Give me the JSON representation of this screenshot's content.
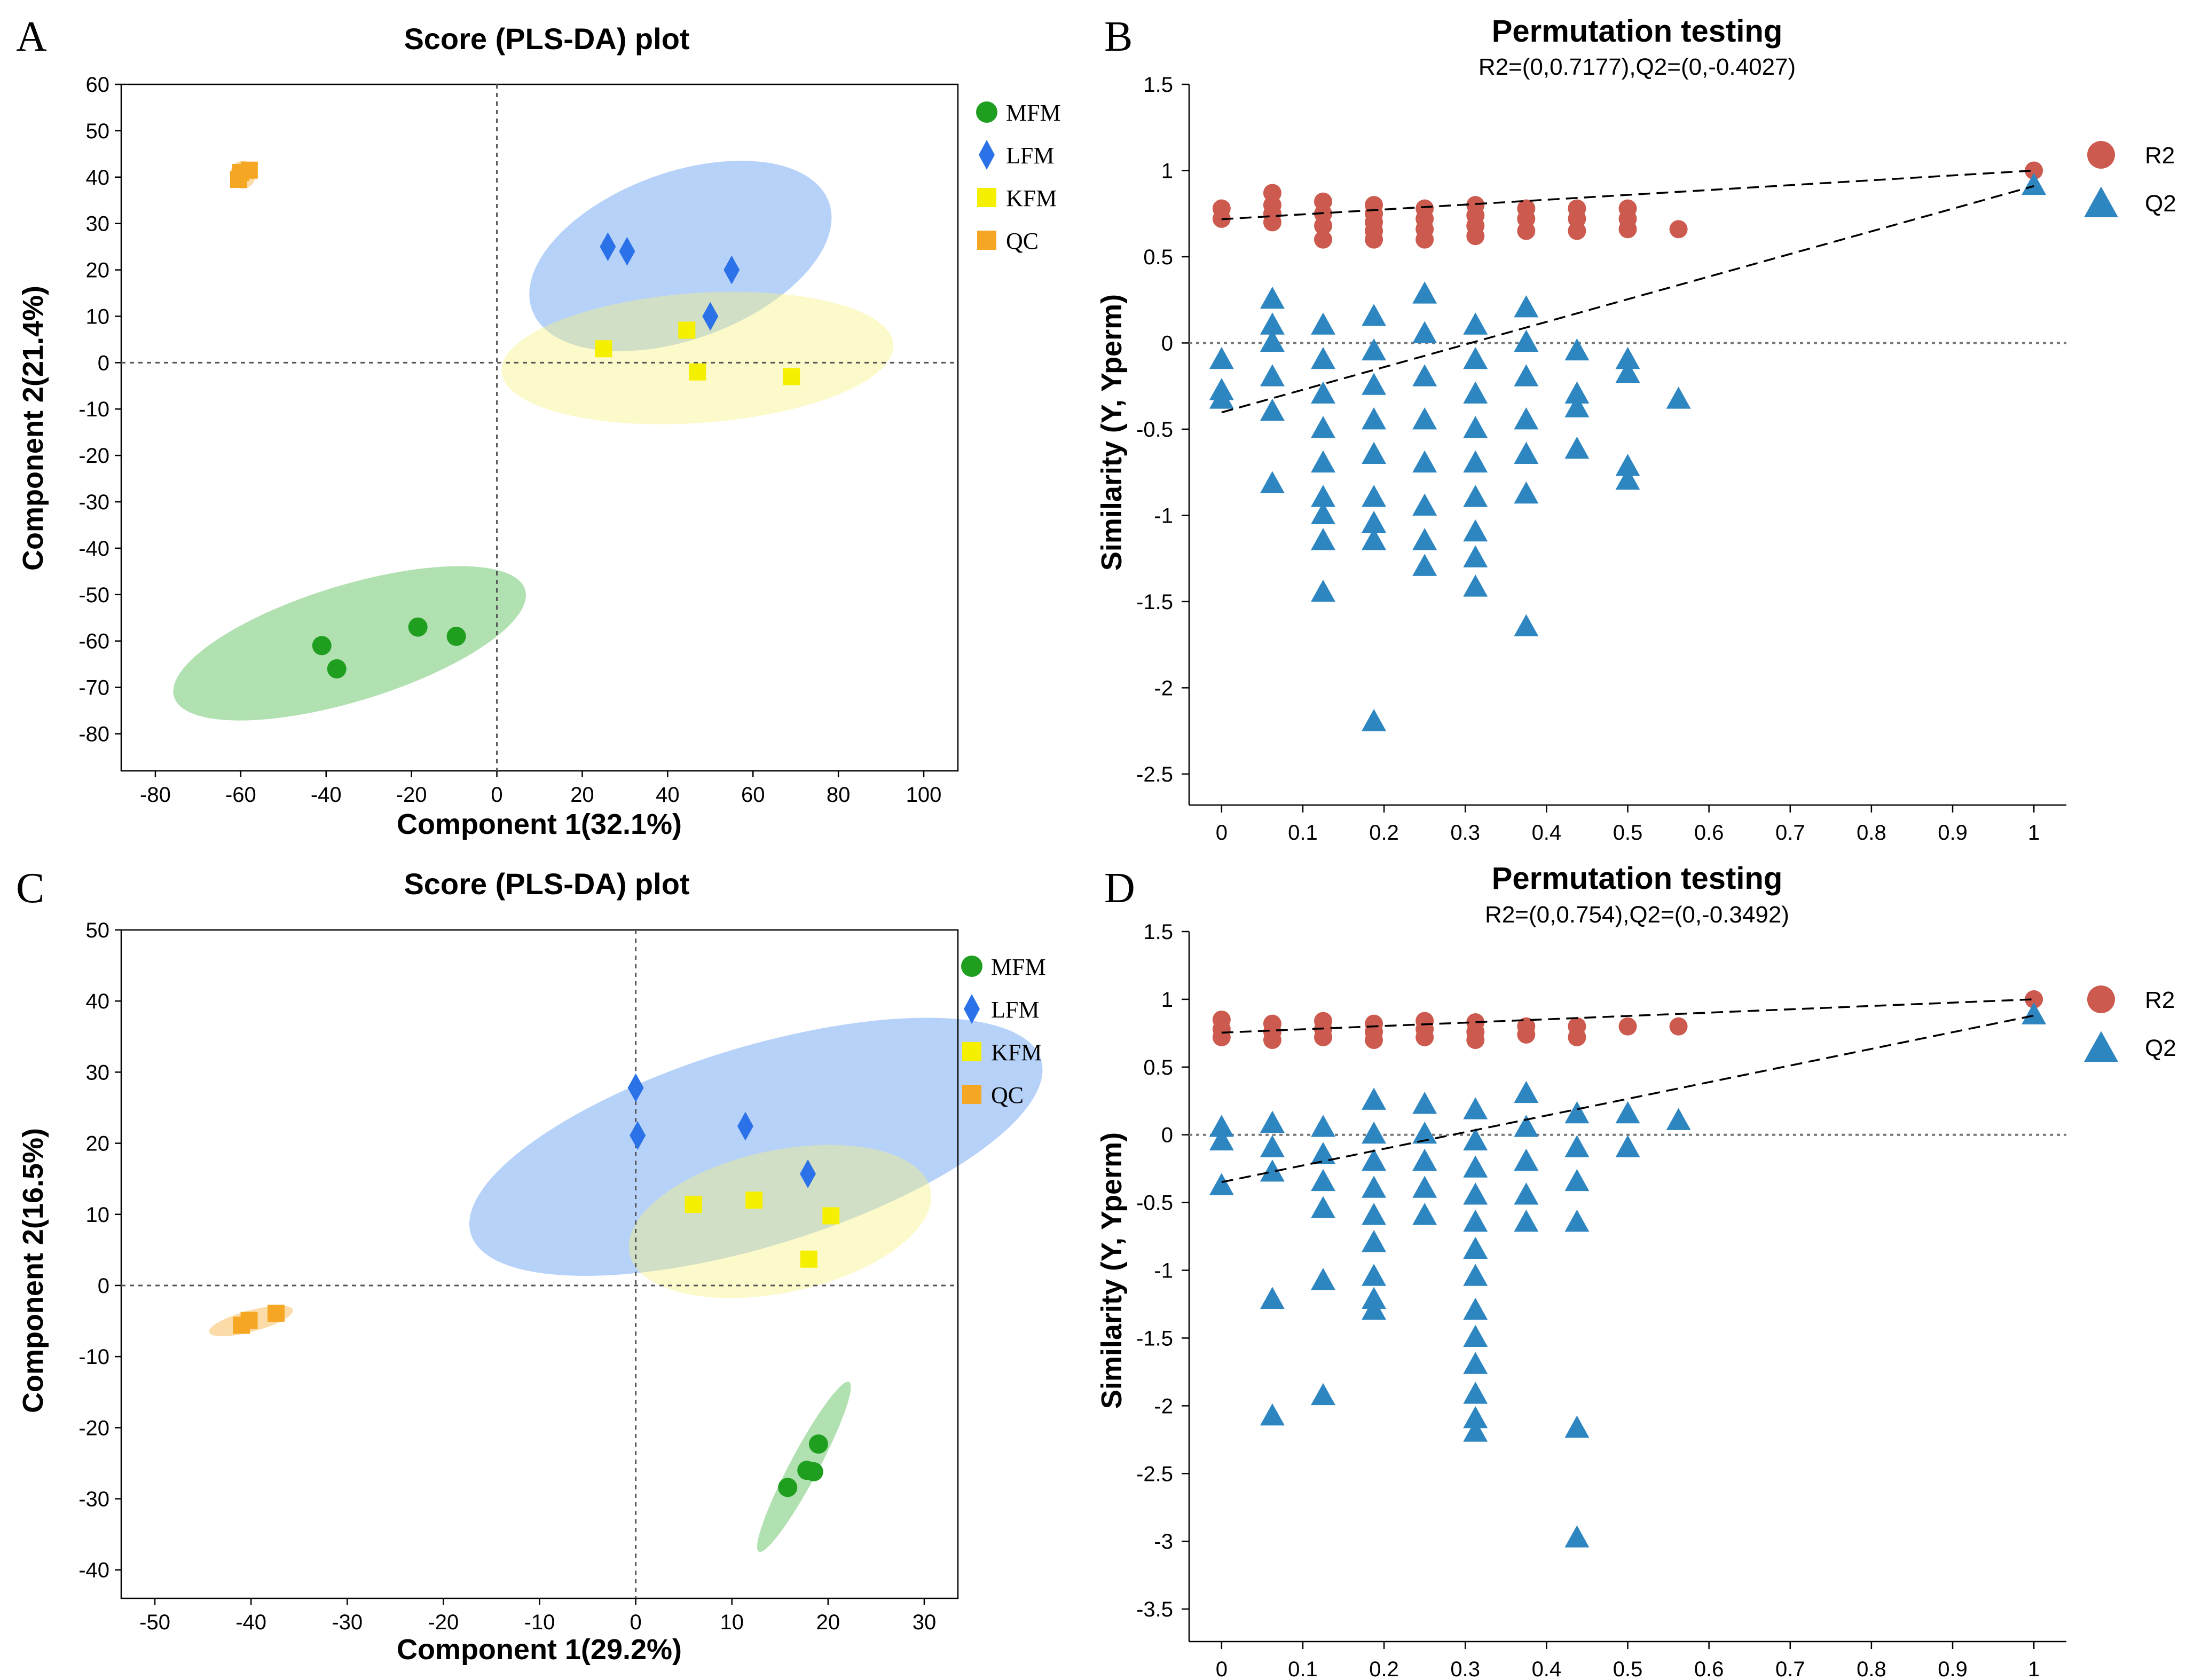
{
  "chart_data": [
    {
      "type": "scatter",
      "panel_label": "A",
      "title": "Score (PLS-DA) plot",
      "xlabel": "Component 1(32.1%)",
      "ylabel": "Component 2(21.4%)",
      "xlim": [
        -88,
        108
      ],
      "ylim": [
        -88,
        60
      ],
      "xticks": [
        "-80",
        "-60",
        "-40",
        "-20",
        "0",
        "20",
        "40",
        "60",
        "80",
        "100"
      ],
      "yticks": [
        "60",
        "50",
        "40",
        "30",
        "20",
        "10",
        "0",
        "-10",
        "-20",
        "-30",
        "-40",
        "-50",
        "-60",
        "-70",
        "-80"
      ],
      "legend": [
        "MFM",
        "LFM",
        "KFM",
        "QC"
      ],
      "series": [
        {
          "name": "MFM",
          "color": "#1f9e1f",
          "points": [
            [
              -41,
              -61
            ],
            [
              -37.5,
              -66
            ],
            [
              -18.5,
              -57
            ],
            [
              -9.5,
              -59
            ]
          ]
        },
        {
          "name": "LFM",
          "color": "#2b72e8",
          "points": [
            [
              26,
              25
            ],
            [
              30.5,
              24
            ],
            [
              50,
              10
            ],
            [
              55,
              20
            ]
          ]
        },
        {
          "name": "KFM",
          "color": "#f5f000",
          "points": [
            [
              25,
              3
            ],
            [
              44.5,
              7
            ],
            [
              47,
              -2
            ],
            [
              69,
              -3
            ]
          ]
        },
        {
          "name": "QC",
          "color": "#f5a623",
          "points": [
            [
              -60.5,
              39.5
            ],
            [
              -60,
              41
            ],
            [
              -58,
              41.5
            ]
          ]
        }
      ]
    },
    {
      "type": "scatter",
      "panel_label": "B",
      "title": "Permutation testing",
      "subtitle": "R2=(0,0.7177),Q2=(0,-0.4027)",
      "xlabel": "",
      "ylabel": "Similarity (Y, Yperm)",
      "xlim": [
        -0.04,
        1.04
      ],
      "ylim": [
        -2.68,
        1.5
      ],
      "xticks": [
        "0",
        "0.1",
        "0.2",
        "0.3",
        "0.4",
        "0.5",
        "0.6",
        "0.7",
        "0.8",
        "0.9",
        "1"
      ],
      "yticks": [
        "1.5",
        "1",
        "0.5",
        "0",
        "-0.5",
        "-1",
        "-1.5",
        "-2",
        "-2.5"
      ],
      "legend": [
        "R2",
        "Q2"
      ],
      "series": [
        {
          "name": "R2",
          "color": "#cc5a4e",
          "points": [
            [
              0,
              0.72
            ],
            [
              0,
              0.78
            ],
            [
              0.0625,
              0.7
            ],
            [
              0.0625,
              0.75
            ],
            [
              0.0625,
              0.8
            ],
            [
              0.0625,
              0.87
            ],
            [
              0.125,
              0.6
            ],
            [
              0.125,
              0.68
            ],
            [
              0.125,
              0.75
            ],
            [
              0.125,
              0.82
            ],
            [
              0.1875,
              0.6
            ],
            [
              0.1875,
              0.65
            ],
            [
              0.1875,
              0.7
            ],
            [
              0.1875,
              0.75
            ],
            [
              0.1875,
              0.8
            ],
            [
              0.25,
              0.6
            ],
            [
              0.25,
              0.66
            ],
            [
              0.25,
              0.72
            ],
            [
              0.25,
              0.78
            ],
            [
              0.3125,
              0.62
            ],
            [
              0.3125,
              0.68
            ],
            [
              0.3125,
              0.74
            ],
            [
              0.3125,
              0.8
            ],
            [
              0.375,
              0.65
            ],
            [
              0.375,
              0.72
            ],
            [
              0.375,
              0.78
            ],
            [
              0.4375,
              0.65
            ],
            [
              0.4375,
              0.72
            ],
            [
              0.4375,
              0.78
            ],
            [
              0.5,
              0.66
            ],
            [
              0.5,
              0.72
            ],
            [
              0.5,
              0.78
            ],
            [
              0.5625,
              0.66
            ],
            [
              1,
              1.0
            ]
          ]
        },
        {
          "name": "Q2",
          "color": "#2e86c1",
          "points": [
            [
              0,
              -0.1
            ],
            [
              0,
              -0.28
            ],
            [
              0,
              -0.33
            ],
            [
              0.0625,
              0.25
            ],
            [
              0.0625,
              0.1
            ],
            [
              0.0625,
              0.0
            ],
            [
              0.0625,
              -0.2
            ],
            [
              0.0625,
              -0.4
            ],
            [
              0.0625,
              -0.82
            ],
            [
              0.125,
              0.1
            ],
            [
              0.125,
              -0.1
            ],
            [
              0.125,
              -0.3
            ],
            [
              0.125,
              -0.5
            ],
            [
              0.125,
              -0.7
            ],
            [
              0.125,
              -0.9
            ],
            [
              0.125,
              -1.0
            ],
            [
              0.125,
              -1.15
            ],
            [
              0.125,
              -1.45
            ],
            [
              0.1875,
              0.15
            ],
            [
              0.1875,
              -0.05
            ],
            [
              0.1875,
              -0.25
            ],
            [
              0.1875,
              -0.45
            ],
            [
              0.1875,
              -0.65
            ],
            [
              0.1875,
              -0.9
            ],
            [
              0.1875,
              -1.05
            ],
            [
              0.1875,
              -1.15
            ],
            [
              0.1875,
              -2.2
            ],
            [
              0.25,
              0.28
            ],
            [
              0.25,
              0.05
            ],
            [
              0.25,
              -0.2
            ],
            [
              0.25,
              -0.45
            ],
            [
              0.25,
              -0.7
            ],
            [
              0.25,
              -0.95
            ],
            [
              0.25,
              -1.15
            ],
            [
              0.25,
              -1.3
            ],
            [
              0.3125,
              0.1
            ],
            [
              0.3125,
              -0.1
            ],
            [
              0.3125,
              -0.3
            ],
            [
              0.3125,
              -0.5
            ],
            [
              0.3125,
              -0.7
            ],
            [
              0.3125,
              -0.9
            ],
            [
              0.3125,
              -1.1
            ],
            [
              0.3125,
              -1.25
            ],
            [
              0.3125,
              -1.42
            ],
            [
              0.375,
              0.2
            ],
            [
              0.375,
              0.0
            ],
            [
              0.375,
              -0.2
            ],
            [
              0.375,
              -0.45
            ],
            [
              0.375,
              -0.65
            ],
            [
              0.375,
              -0.88
            ],
            [
              0.375,
              -1.65
            ],
            [
              0.4375,
              -0.05
            ],
            [
              0.4375,
              -0.3
            ],
            [
              0.4375,
              -0.38
            ],
            [
              0.4375,
              -0.62
            ],
            [
              0.5,
              -0.1
            ],
            [
              0.5,
              -0.18
            ],
            [
              0.5,
              -0.72
            ],
            [
              0.5,
              -0.8
            ],
            [
              0.5625,
              -0.33
            ],
            [
              1,
              0.91
            ]
          ]
        }
      ],
      "regression_lines": [
        {
          "name": "R2",
          "from": [
            0,
            0.7177
          ],
          "to": [
            1,
            1.0
          ]
        },
        {
          "name": "Q2",
          "from": [
            0,
            -0.4027
          ],
          "to": [
            1,
            0.91
          ]
        }
      ]
    },
    {
      "type": "scatter",
      "panel_label": "C",
      "title": "Score (PLS-DA) plot",
      "xlabel": "Component 1(29.2%)",
      "ylabel": "Component 2(16.5%)",
      "xlim": [
        -53.5,
        33.5
      ],
      "ylim": [
        -44,
        50
      ],
      "xticks": [
        "-50",
        "-40",
        "-30",
        "-20",
        "-10",
        "0",
        "10",
        "20",
        "30"
      ],
      "yticks": [
        "50",
        "40",
        "30",
        "20",
        "10",
        "0",
        "-10",
        "-20",
        "-30",
        "-40"
      ],
      "legend": [
        "MFM",
        "LFM",
        "KFM",
        "QC"
      ],
      "series": [
        {
          "name": "MFM",
          "color": "#1f9e1f",
          "points": [
            [
              15.8,
              -28.4
            ],
            [
              17.8,
              -26
            ],
            [
              18.5,
              -26.2
            ],
            [
              19,
              -22.3
            ]
          ]
        },
        {
          "name": "LFM",
          "color": "#2b72e8",
          "points": [
            [
              0,
              27.8
            ],
            [
              0.2,
              21.1
            ],
            [
              11.4,
              22.4
            ],
            [
              17.9,
              15.7
            ]
          ]
        },
        {
          "name": "KFM",
          "color": "#f5f000",
          "points": [
            [
              6,
              11.4
            ],
            [
              12.3,
              12
            ],
            [
              20.3,
              9.8
            ],
            [
              18,
              3.7
            ]
          ]
        },
        {
          "name": "QC",
          "color": "#f5a623",
          "points": [
            [
              -41,
              -5.6
            ],
            [
              -40.2,
              -4.9
            ],
            [
              -37.4,
              -3.9
            ]
          ]
        }
      ]
    },
    {
      "type": "scatter",
      "panel_label": "D",
      "title": "Permutation testing",
      "subtitle": "R2=(0,0.754),Q2=(0,-0.3492)",
      "xlabel": "",
      "ylabel": "Similarity (Y, Yperm)",
      "xlim": [
        -0.04,
        1.04
      ],
      "ylim": [
        -3.74,
        1.5
      ],
      "xticks": [
        "0",
        "0.1",
        "0.2",
        "0.3",
        "0.4",
        "0.5",
        "0.6",
        "0.7",
        "0.8",
        "0.9",
        "1"
      ],
      "yticks": [
        "1.5",
        "1",
        "0.5",
        "0",
        "-0.5",
        "-1",
        "-1.5",
        "-2",
        "-2.5",
        "-3",
        "-3.5"
      ],
      "legend": [
        "R2",
        "Q2"
      ],
      "series": [
        {
          "name": "R2",
          "color": "#cc5a4e",
          "points": [
            [
              0,
              0.72
            ],
            [
              0,
              0.78
            ],
            [
              0,
              0.85
            ],
            [
              0.0625,
              0.7
            ],
            [
              0.0625,
              0.76
            ],
            [
              0.0625,
              0.82
            ],
            [
              0.125,
              0.72
            ],
            [
              0.125,
              0.78
            ],
            [
              0.125,
              0.84
            ],
            [
              0.1875,
              0.7
            ],
            [
              0.1875,
              0.76
            ],
            [
              0.1875,
              0.82
            ],
            [
              0.25,
              0.72
            ],
            [
              0.25,
              0.78
            ],
            [
              0.25,
              0.84
            ],
            [
              0.3125,
              0.7
            ],
            [
              0.3125,
              0.76
            ],
            [
              0.3125,
              0.83
            ],
            [
              0.375,
              0.74
            ],
            [
              0.375,
              0.8
            ],
            [
              0.4375,
              0.72
            ],
            [
              0.4375,
              0.8
            ],
            [
              0.5,
              0.8
            ],
            [
              0.5625,
              0.8
            ],
            [
              1,
              1.0
            ]
          ]
        },
        {
          "name": "Q2",
          "color": "#2e86c1",
          "points": [
            [
              0,
              0.05
            ],
            [
              0,
              -0.05
            ],
            [
              0,
              -0.38
            ],
            [
              0.0625,
              0.08
            ],
            [
              0.0625,
              -0.1
            ],
            [
              0.0625,
              -0.28
            ],
            [
              0.0625,
              -1.22
            ],
            [
              0.0625,
              -2.08
            ],
            [
              0.125,
              0.05
            ],
            [
              0.125,
              -0.15
            ],
            [
              0.125,
              -0.35
            ],
            [
              0.125,
              -0.55
            ],
            [
              0.125,
              -1.08
            ],
            [
              0.125,
              -1.93
            ],
            [
              0.1875,
              0.25
            ],
            [
              0.1875,
              0.0
            ],
            [
              0.1875,
              -0.2
            ],
            [
              0.1875,
              -0.4
            ],
            [
              0.1875,
              -0.6
            ],
            [
              0.1875,
              -0.8
            ],
            [
              0.1875,
              -1.05
            ],
            [
              0.1875,
              -1.22
            ],
            [
              0.1875,
              -1.3
            ],
            [
              0.25,
              0.22
            ],
            [
              0.25,
              0.0
            ],
            [
              0.25,
              -0.2
            ],
            [
              0.25,
              -0.4
            ],
            [
              0.25,
              -0.6
            ],
            [
              0.3125,
              0.18
            ],
            [
              0.3125,
              -0.05
            ],
            [
              0.3125,
              -0.25
            ],
            [
              0.3125,
              -0.45
            ],
            [
              0.3125,
              -0.65
            ],
            [
              0.3125,
              -0.85
            ],
            [
              0.3125,
              -1.05
            ],
            [
              0.3125,
              -1.3
            ],
            [
              0.3125,
              -1.5
            ],
            [
              0.3125,
              -1.7
            ],
            [
              0.3125,
              -1.92
            ],
            [
              0.3125,
              -2.1
            ],
            [
              0.3125,
              -2.2
            ],
            [
              0.375,
              0.3
            ],
            [
              0.375,
              0.05
            ],
            [
              0.375,
              -0.2
            ],
            [
              0.375,
              -0.45
            ],
            [
              0.375,
              -0.65
            ],
            [
              0.4375,
              0.15
            ],
            [
              0.4375,
              -0.1
            ],
            [
              0.4375,
              -0.35
            ],
            [
              0.4375,
              -0.65
            ],
            [
              0.4375,
              -2.17
            ],
            [
              0.4375,
              -2.98
            ],
            [
              0.5,
              0.15
            ],
            [
              0.5,
              -0.1
            ],
            [
              0.5625,
              0.1
            ],
            [
              1,
              0.88
            ]
          ]
        }
      ],
      "regression_lines": [
        {
          "name": "R2",
          "from": [
            0,
            0.754
          ],
          "to": [
            1,
            1.0
          ]
        },
        {
          "name": "Q2",
          "from": [
            0,
            -0.3492
          ],
          "to": [
            1,
            0.88
          ]
        }
      ]
    }
  ]
}
